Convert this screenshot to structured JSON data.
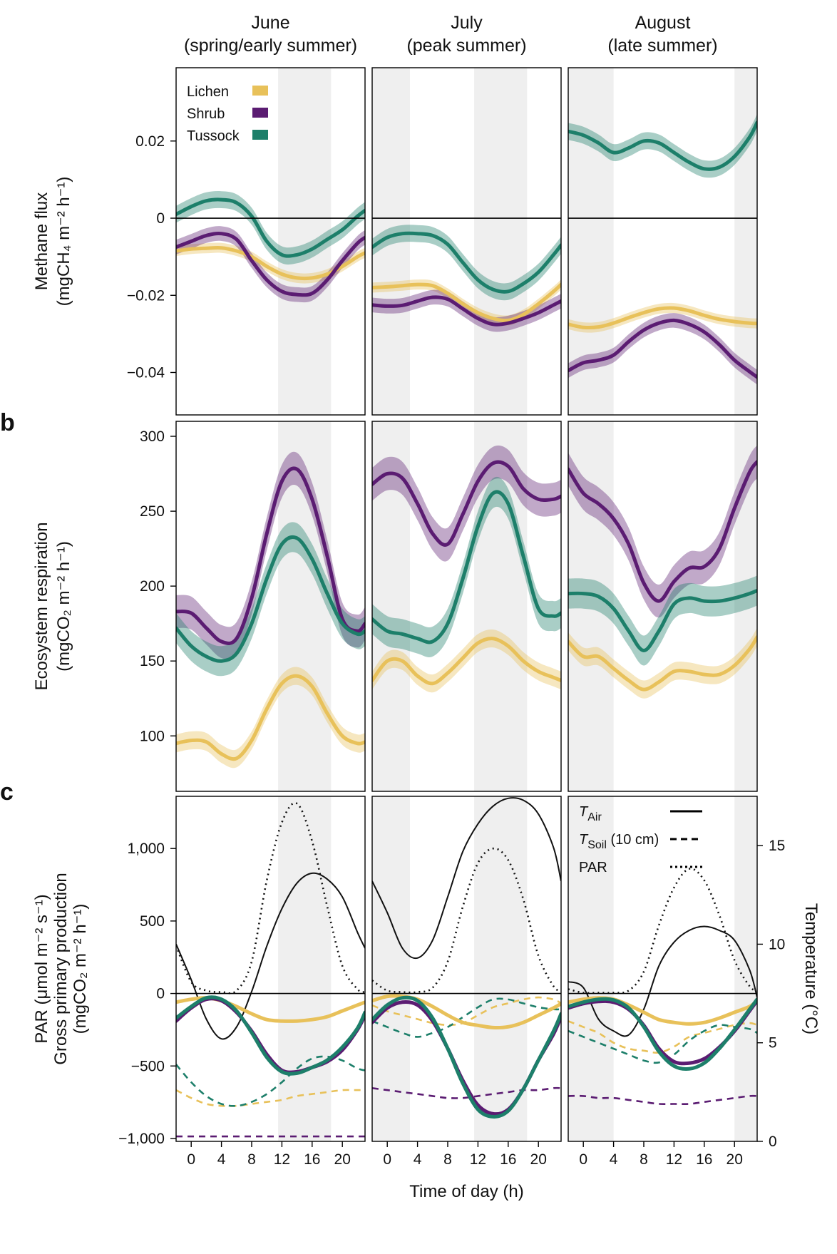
{
  "columns": [
    {
      "title": "June",
      "subtitle": "(spring/early summer)"
    },
    {
      "title": "July",
      "subtitle": "(peak summer)"
    },
    {
      "title": "August",
      "subtitle": "(late summer)"
    }
  ],
  "panel_letters": [
    "b",
    "c"
  ],
  "x_axis": {
    "title": "Time of day (h)",
    "ticks": [
      0,
      4,
      8,
      12,
      16,
      20
    ],
    "tick_labels": [
      "0",
      "4",
      "8",
      "12",
      "16",
      "20"
    ],
    "range": [
      -2,
      23
    ]
  },
  "shading": [
    [
      [
        11.5,
        18.5
      ]
    ],
    [
      [
        -2,
        3
      ],
      [
        11.5,
        18.5
      ]
    ],
    [
      [
        -2,
        4
      ],
      [
        20,
        23
      ]
    ]
  ],
  "legend_top": [
    {
      "label": "Lichen",
      "color": "#E8C15A"
    },
    {
      "label": "Shrub",
      "color": "#5B1C72"
    },
    {
      "label": "Tussock",
      "color": "#1D7F6A"
    }
  ],
  "legend_bottom": [
    {
      "label_italic": "T",
      "label_sub": "Air",
      "label_rest": "",
      "dash": "solid"
    },
    {
      "label_italic": "T",
      "label_sub": "Soil",
      "label_rest": " (10 cm)",
      "dash": "dashed"
    },
    {
      "label_italic": "",
      "label_sub": "",
      "label_rest": "PAR",
      "dash": "dotted"
    }
  ],
  "chart_data": [
    {
      "type": "line",
      "panel": "a",
      "ylabel_line1": "Methane flux",
      "ylabel_line2": "(mgCH₄ m⁻² h⁻¹)",
      "ylim": [
        -0.051,
        0.039
      ],
      "yticks": [
        -0.04,
        -0.02,
        0,
        0.02
      ],
      "ytick_labels": [
        "−0.04",
        "−0.02",
        "0",
        "0.02"
      ],
      "zero_line": true,
      "x": [
        -2,
        0,
        2,
        4,
        6,
        8,
        10,
        12,
        14,
        16,
        18,
        20,
        22,
        23
      ],
      "series": [
        {
          "name": "Lichen",
          "color": "#E8C15A",
          "band": 0.0013,
          "values": [
            [
              -0.0085,
              -0.008,
              -0.0078,
              -0.0077,
              -0.0085,
              -0.01,
              -0.0125,
              -0.0145,
              -0.0155,
              -0.0155,
              -0.0145,
              -0.0125,
              -0.01,
              -0.009
            ],
            [
              -0.018,
              -0.0178,
              -0.0175,
              -0.0172,
              -0.0175,
              -0.0195,
              -0.0222,
              -0.0245,
              -0.026,
              -0.0265,
              -0.025,
              -0.0222,
              -0.019,
              -0.0172
            ],
            [
              -0.0275,
              -0.0283,
              -0.0282,
              -0.0272,
              -0.0258,
              -0.0245,
              -0.0235,
              -0.0233,
              -0.024,
              -0.0252,
              -0.0262,
              -0.0268,
              -0.0272,
              -0.0273
            ]
          ]
        },
        {
          "name": "Shrub",
          "color": "#5B1C72",
          "band": 0.0019,
          "values": [
            [
              -0.0075,
              -0.006,
              -0.0045,
              -0.004,
              -0.0055,
              -0.011,
              -0.016,
              -0.019,
              -0.0198,
              -0.0195,
              -0.016,
              -0.011,
              -0.0065,
              -0.005
            ],
            [
              -0.0225,
              -0.0228,
              -0.0226,
              -0.0215,
              -0.0205,
              -0.021,
              -0.0235,
              -0.026,
              -0.0275,
              -0.0272,
              -0.026,
              -0.0245,
              -0.0225,
              -0.0215
            ],
            [
              -0.0395,
              -0.0375,
              -0.0368,
              -0.0355,
              -0.032,
              -0.029,
              -0.0272,
              -0.0265,
              -0.0275,
              -0.0295,
              -0.0328,
              -0.0368,
              -0.0398,
              -0.0412
            ]
          ]
        },
        {
          "name": "Tussock",
          "color": "#1D7F6A",
          "band": 0.0022,
          "values": [
            [
              0.001,
              0.003,
              0.0045,
              0.0048,
              0.004,
              0.0005,
              -0.006,
              -0.0095,
              -0.0095,
              -0.008,
              -0.0055,
              -0.003,
              0.0005,
              0.002
            ],
            [
              -0.0075,
              -0.005,
              -0.004,
              -0.004,
              -0.0045,
              -0.0068,
              -0.0115,
              -0.016,
              -0.0185,
              -0.019,
              -0.017,
              -0.014,
              -0.0095,
              -0.007
            ],
            [
              0.0225,
              0.0215,
              0.0195,
              0.017,
              0.0182,
              0.02,
              0.0195,
              0.017,
              0.0145,
              0.0128,
              0.0132,
              0.016,
              0.021,
              0.0248
            ]
          ]
        }
      ]
    },
    {
      "type": "line",
      "panel": "b",
      "ylabel_line1": "Ecosystem respiration",
      "ylabel_line2": "(mgCO₂ m⁻² h⁻¹)",
      "ylim": [
        63,
        310
      ],
      "yticks": [
        100,
        150,
        200,
        250,
        300
      ],
      "ytick_labels": [
        "100",
        "150",
        "200",
        "250",
        "300"
      ],
      "zero_line": false,
      "x": [
        -2,
        0,
        2,
        4,
        6,
        8,
        10,
        12,
        14,
        16,
        18,
        20,
        22,
        23
      ],
      "series": [
        {
          "name": "Lichen",
          "color": "#E8C15A",
          "band": 6,
          "values": [
            [
              95,
              97,
              96,
              88,
              85,
              97,
              118,
              135,
              140,
              133,
              115,
              100,
              95,
              96
            ],
            [
              137,
              150,
              150,
              140,
              135,
              142,
              152,
              162,
              165,
              160,
              150,
              143,
              139,
              137
            ],
            [
              163,
              153,
              153,
              145,
              137,
              131,
              136,
              143,
              143,
              141,
              141,
              147,
              158,
              166
            ]
          ]
        },
        {
          "name": "Shrub",
          "color": "#5B1C72",
          "band": 11,
          "values": [
            [
              183,
              182,
              172,
              163,
              165,
              192,
              235,
              270,
              278,
              258,
              220,
              178,
              170,
              175
            ],
            [
              268,
              275,
              272,
              255,
              235,
              228,
              248,
              270,
              282,
              280,
              265,
              258,
              258,
              260
            ],
            [
              278,
              262,
              255,
              245,
              228,
              202,
              190,
              203,
              212,
              213,
              225,
              252,
              276,
              283
            ]
          ]
        },
        {
          "name": "Tussock",
          "color": "#1D7F6A",
          "band": 10,
          "values": [
            [
              172,
              160,
              153,
              150,
              155,
              175,
              205,
              228,
              232,
              218,
              195,
              175,
              168,
              170
            ],
            [
              178,
              170,
              168,
              165,
              163,
              175,
              205,
              240,
              262,
              255,
              220,
              185,
              180,
              182
            ],
            [
              195,
              195,
              193,
              185,
              170,
              157,
              170,
              188,
              192,
              190,
              190,
              192,
              195,
              197
            ]
          ]
        }
      ]
    },
    {
      "type": "line",
      "panel": "c",
      "ylabel_line1": "PAR (μmol m⁻² s⁻¹)",
      "ylabel_line2": "Gross primary production",
      "ylabel_line3": "(mgCO₂ m⁻² h⁻¹)",
      "ylim": [
        -1020,
        1360
      ],
      "yticks": [
        -1000,
        -500,
        0,
        500,
        1000
      ],
      "ytick_labels": [
        "−1,000",
        "−500",
        "0",
        "500",
        "1,000"
      ],
      "zero_line": true,
      "y2label": "Temperature (°C)",
      "y2lim": [
        0,
        17.5
      ],
      "y2ticks": [
        0,
        5,
        10,
        15
      ],
      "y2tick_labels": [
        "0",
        "5",
        "10",
        "15"
      ],
      "x": [
        -2,
        0,
        2,
        4,
        6,
        8,
        10,
        12,
        14,
        16,
        18,
        20,
        22,
        23
      ],
      "series": [
        {
          "name": "Lichen GPP",
          "color": "#E8C15A",
          "values": [
            [
              -60,
              -40,
              -30,
              -50,
              -90,
              -140,
              -180,
              -190,
              -190,
              -180,
              -160,
              -120,
              -80,
              -60
            ],
            [
              -50,
              -20,
              -20,
              -40,
              -90,
              -150,
              -200,
              -220,
              -235,
              -230,
              -200,
              -150,
              -100,
              -70
            ],
            [
              -60,
              -40,
              -30,
              -40,
              -80,
              -130,
              -180,
              -200,
              -210,
              -200,
              -170,
              -130,
              -90,
              -50
            ]
          ]
        },
        {
          "name": "Shrub GPP",
          "color": "#5B1C72",
          "values": [
            [
              -190,
              -100,
              -40,
              -50,
              -130,
              -260,
              -420,
              -530,
              -540,
              -510,
              -470,
              -390,
              -250,
              -150
            ],
            [
              -200,
              -100,
              -60,
              -80,
              -190,
              -380,
              -600,
              -770,
              -830,
              -800,
              -660,
              -460,
              -280,
              -160
            ],
            [
              -100,
              -70,
              -55,
              -60,
              -110,
              -220,
              -380,
              -470,
              -480,
              -450,
              -370,
              -260,
              -120,
              -50
            ]
          ]
        },
        {
          "name": "Tussock GPP",
          "color": "#1D7F6A",
          "values": [
            [
              -170,
              -90,
              -30,
              -40,
              -120,
              -270,
              -440,
              -540,
              -550,
              -510,
              -460,
              -370,
              -240,
              -130
            ],
            [
              -180,
              -80,
              -30,
              -50,
              -170,
              -380,
              -620,
              -800,
              -850,
              -810,
              -660,
              -460,
              -260,
              -140
            ],
            [
              -90,
              -60,
              -40,
              -45,
              -100,
              -230,
              -400,
              -500,
              -520,
              -480,
              -380,
              -250,
              -110,
              -40
            ]
          ]
        }
      ],
      "y2_series": [
        {
          "name": "T Air",
          "color": "#111111",
          "dash": "solid",
          "axis": "right",
          "values": [
            [
              10,
              8.2,
              6.2,
              5.2,
              5.8,
              7.6,
              9.9,
              11.8,
              13.1,
              13.6,
              13.3,
              12.4,
              10.6,
              9.8
            ],
            [
              13.2,
              11.6,
              9.8,
              9.3,
              10.2,
              12.4,
              14.7,
              16.1,
              17.0,
              17.4,
              17.3,
              16.6,
              14.9,
              13.2
            ],
            [
              8.1,
              7.8,
              6.2,
              5.6,
              5.4,
              6.7,
              8.9,
              10.1,
              10.7,
              10.9,
              10.7,
              10.2,
              8.7,
              7.3
            ]
          ]
        },
        {
          "name": "T Soil Lichen",
          "color": "#E8C15A",
          "dash": "dashed",
          "axis": "right",
          "values": [
            [
              2.6,
              2.2,
              1.9,
              1.8,
              1.8,
              1.9,
              2.0,
              2.1,
              2.3,
              2.4,
              2.5,
              2.6,
              2.6,
              2.6
            ],
            [
              6.9,
              6.6,
              6.4,
              6.2,
              6.0,
              5.9,
              6.0,
              6.4,
              6.8,
              7.0,
              7.2,
              7.3,
              7.2,
              7.0
            ],
            [
              6.1,
              5.8,
              5.5,
              5.0,
              4.7,
              4.6,
              4.5,
              4.8,
              5.3,
              5.5,
              5.7,
              5.9,
              6.0,
              5.9
            ]
          ]
        },
        {
          "name": "T Soil Tussock",
          "color": "#1D7F6A",
          "dash": "dashed",
          "axis": "right",
          "values": [
            [
              3.9,
              3.0,
              2.3,
              1.9,
              1.8,
              2.0,
              2.4,
              3.0,
              3.7,
              4.2,
              4.3,
              4.1,
              3.7,
              3.6
            ],
            [
              6.1,
              5.8,
              5.5,
              5.3,
              5.5,
              5.8,
              6.3,
              6.8,
              7.2,
              7.2,
              7.0,
              6.8,
              6.7,
              6.7
            ],
            [
              5.6,
              5.3,
              5.0,
              4.7,
              4.4,
              4.1,
              4.0,
              4.4,
              5.1,
              5.6,
              5.9,
              5.8,
              5.7,
              5.5
            ]
          ]
        },
        {
          "name": "T Soil Shrub",
          "color": "#5B1C72",
          "dash": "dashed",
          "axis": "right",
          "values": [
            [
              0.25,
              0.25,
              0.25,
              0.25,
              0.25,
              0.25,
              0.25,
              0.25,
              0.25,
              0.25,
              0.25,
              0.25,
              0.25,
              0.25
            ],
            [
              2.7,
              2.6,
              2.5,
              2.4,
              2.3,
              2.2,
              2.2,
              2.3,
              2.4,
              2.5,
              2.6,
              2.6,
              2.7,
              2.7
            ],
            [
              2.3,
              2.3,
              2.2,
              2.2,
              2.1,
              2.0,
              1.9,
              1.9,
              1.9,
              2.0,
              2.1,
              2.2,
              2.3,
              2.3
            ]
          ]
        },
        {
          "name": "PAR",
          "color": "#111111",
          "dash": "dotted",
          "axis": "left",
          "values": [
            [
              330,
              80,
              20,
              10,
              20,
              220,
              780,
              1180,
              1310,
              1050,
              600,
              190,
              30,
              10
            ],
            [
              90,
              20,
              10,
              10,
              40,
              220,
              600,
              900,
              1000,
              920,
              650,
              260,
              50,
              20
            ],
            [
              30,
              5,
              5,
              5,
              20,
              150,
              470,
              730,
              860,
              780,
              540,
              230,
              50,
              20
            ]
          ]
        }
      ]
    }
  ]
}
